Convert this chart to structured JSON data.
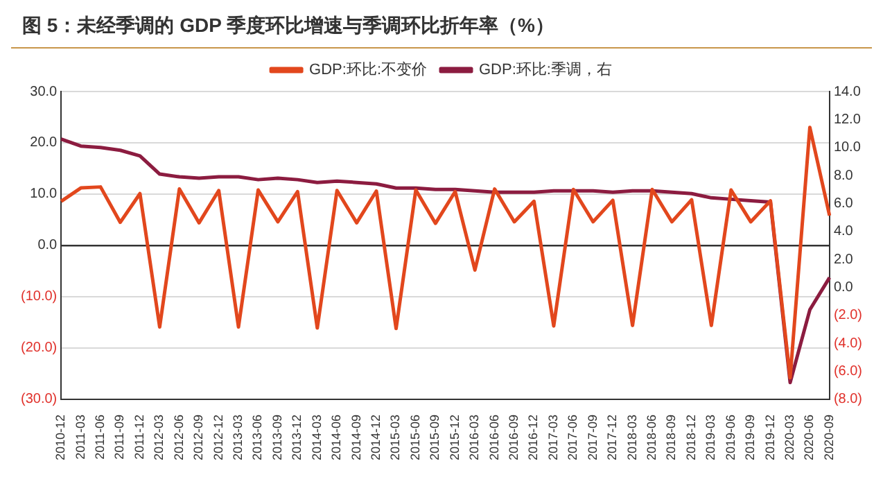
{
  "chart_data": {
    "type": "line",
    "title": "图 5：未经季调的 GDP 季度环比增速与季调环比折年率（%）",
    "categories": [
      "2010-12",
      "2011-03",
      "2011-06",
      "2011-09",
      "2011-12",
      "2012-03",
      "2012-06",
      "2012-09",
      "2012-12",
      "2013-03",
      "2013-06",
      "2013-09",
      "2013-12",
      "2014-03",
      "2014-06",
      "2014-09",
      "2014-12",
      "2015-03",
      "2015-06",
      "2015-09",
      "2015-12",
      "2016-03",
      "2016-06",
      "2016-09",
      "2016-12",
      "2017-03",
      "2017-06",
      "2017-09",
      "2017-12",
      "2018-03",
      "2018-06",
      "2018-09",
      "2018-12",
      "2019-03",
      "2019-06",
      "2019-09",
      "2019-12",
      "2020-03",
      "2020-06",
      "2020-09"
    ],
    "series": [
      {
        "name": "GDP:环比:不变价",
        "color": "#e2471d",
        "values": [
          8.6,
          11.2,
          11.4,
          4.5,
          10.1,
          -15.9,
          11.0,
          4.4,
          10.7,
          -15.9,
          10.8,
          4.6,
          10.5,
          -16.1,
          10.7,
          4.4,
          10.6,
          -16.2,
          10.8,
          4.3,
          10.5,
          -4.8,
          11.0,
          4.6,
          8.6,
          -15.7,
          10.9,
          4.6,
          8.8,
          -15.6,
          10.9,
          4.6,
          8.9,
          -15.6,
          10.8,
          4.6,
          8.7,
          -25.8,
          23.0,
          5.8
        ]
      },
      {
        "name": "GDP:环比:季调，右",
        "color": "#8c1c40",
        "axis": "y2",
        "values": [
          10.6,
          10.1,
          10.0,
          9.8,
          9.4,
          8.1,
          7.9,
          7.8,
          7.9,
          7.9,
          7.7,
          7.8,
          7.7,
          7.5,
          7.6,
          7.5,
          7.4,
          7.1,
          7.1,
          7.0,
          7.0,
          6.9,
          6.8,
          6.8,
          6.8,
          6.9,
          6.9,
          6.9,
          6.8,
          6.9,
          6.9,
          6.8,
          6.7,
          6.4,
          6.3,
          6.2,
          6.1,
          -6.8,
          -1.6,
          0.7
        ]
      }
    ],
    "ylim": [
      -30,
      30
    ],
    "yticks": [
      {
        "value": -30,
        "label": "(30.0)"
      },
      {
        "value": -20,
        "label": "(20.0)"
      },
      {
        "value": -10,
        "label": "(10.0)"
      },
      {
        "value": 0,
        "label": "0.0"
      },
      {
        "value": 10,
        "label": "10.0"
      },
      {
        "value": 20,
        "label": "20.0"
      },
      {
        "value": 30,
        "label": "30.0"
      }
    ],
    "y2lim": [
      -8,
      14
    ],
    "y2ticks": [
      {
        "value": -8,
        "label": "(8.0)"
      },
      {
        "value": -6,
        "label": "(6.0)"
      },
      {
        "value": -4,
        "label": "(4.0)"
      },
      {
        "value": -2,
        "label": "(2.0)"
      },
      {
        "value": 0,
        "label": "0.0"
      },
      {
        "value": 2,
        "label": "2.0"
      },
      {
        "value": 4,
        "label": "4.0"
      },
      {
        "value": 6,
        "label": "6.0"
      },
      {
        "value": 8,
        "label": "8.0"
      },
      {
        "value": 10,
        "label": "10.0"
      },
      {
        "value": 12,
        "label": "12.0"
      },
      {
        "value": 14,
        "label": "14.0"
      }
    ],
    "grid": "y",
    "legend": "top",
    "marker": "none",
    "line_style": "solid"
  }
}
